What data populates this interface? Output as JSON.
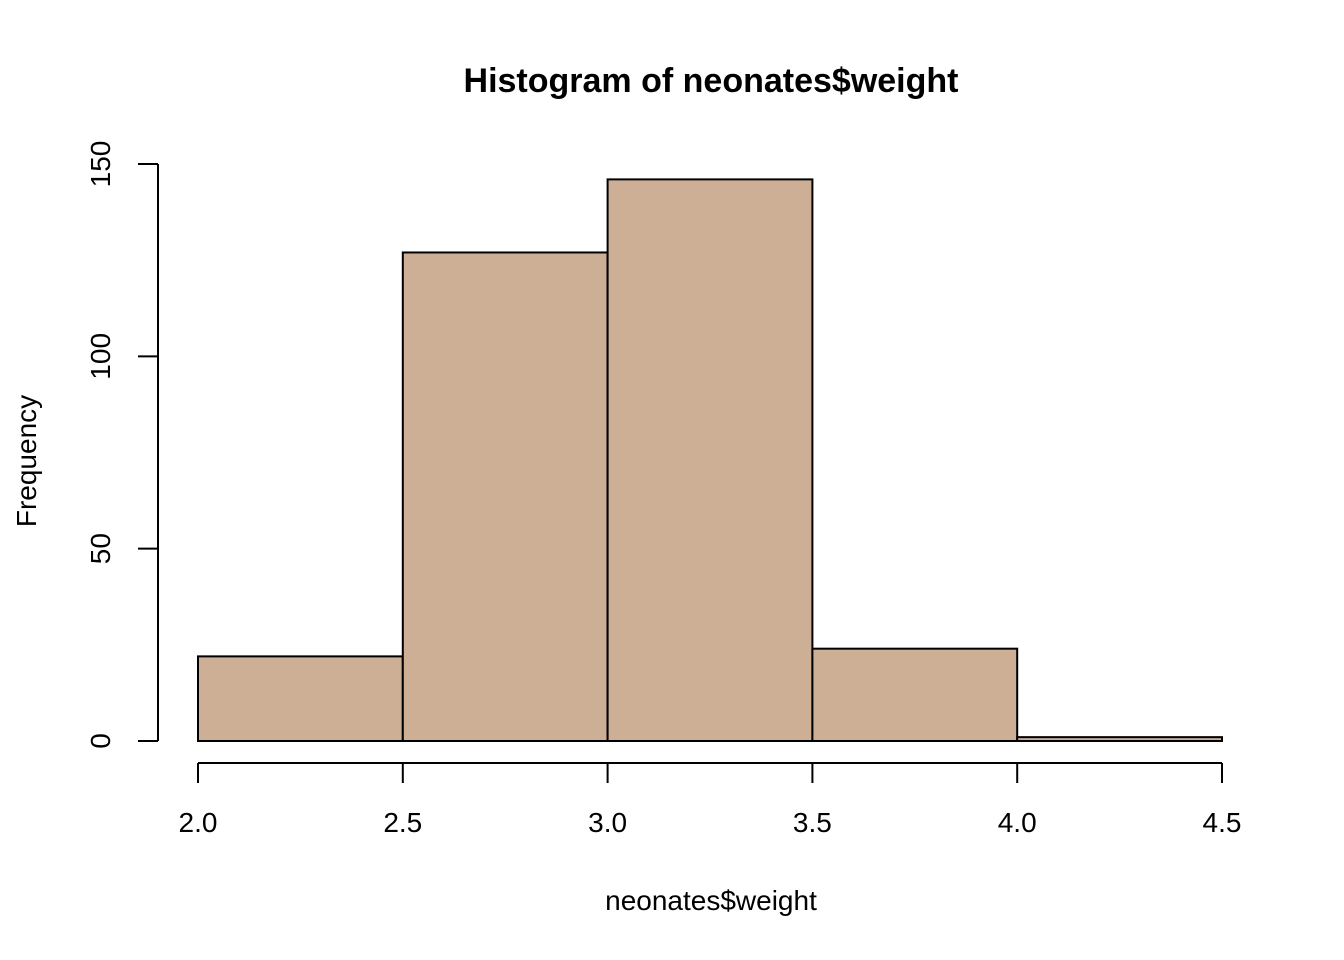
{
  "chart_data": {
    "type": "bar",
    "title": "Histogram of neonates$weight",
    "xlabel": "neonates$weight",
    "ylabel": "Frequency",
    "bins": [
      {
        "from": 2.0,
        "to": 2.5,
        "count": 22
      },
      {
        "from": 2.5,
        "to": 3.0,
        "count": 127
      },
      {
        "from": 3.0,
        "to": 3.5,
        "count": 146
      },
      {
        "from": 3.5,
        "to": 4.0,
        "count": 24
      },
      {
        "from": 4.0,
        "to": 4.5,
        "count": 1
      }
    ],
    "xticks": [
      2.0,
      2.5,
      3.0,
      3.5,
      4.0,
      4.5
    ],
    "xtick_labels": [
      "2.0",
      "2.5",
      "3.0",
      "3.5",
      "4.0",
      "4.5"
    ],
    "yticks": [
      0,
      50,
      100,
      150
    ],
    "ytick_labels": [
      "0",
      "50",
      "100",
      "150"
    ],
    "xlim": [
      2.0,
      4.5
    ],
    "ylim": [
      0,
      150
    ],
    "bar_color": "#CDAF95",
    "border_color": "#000000",
    "grid": false
  }
}
